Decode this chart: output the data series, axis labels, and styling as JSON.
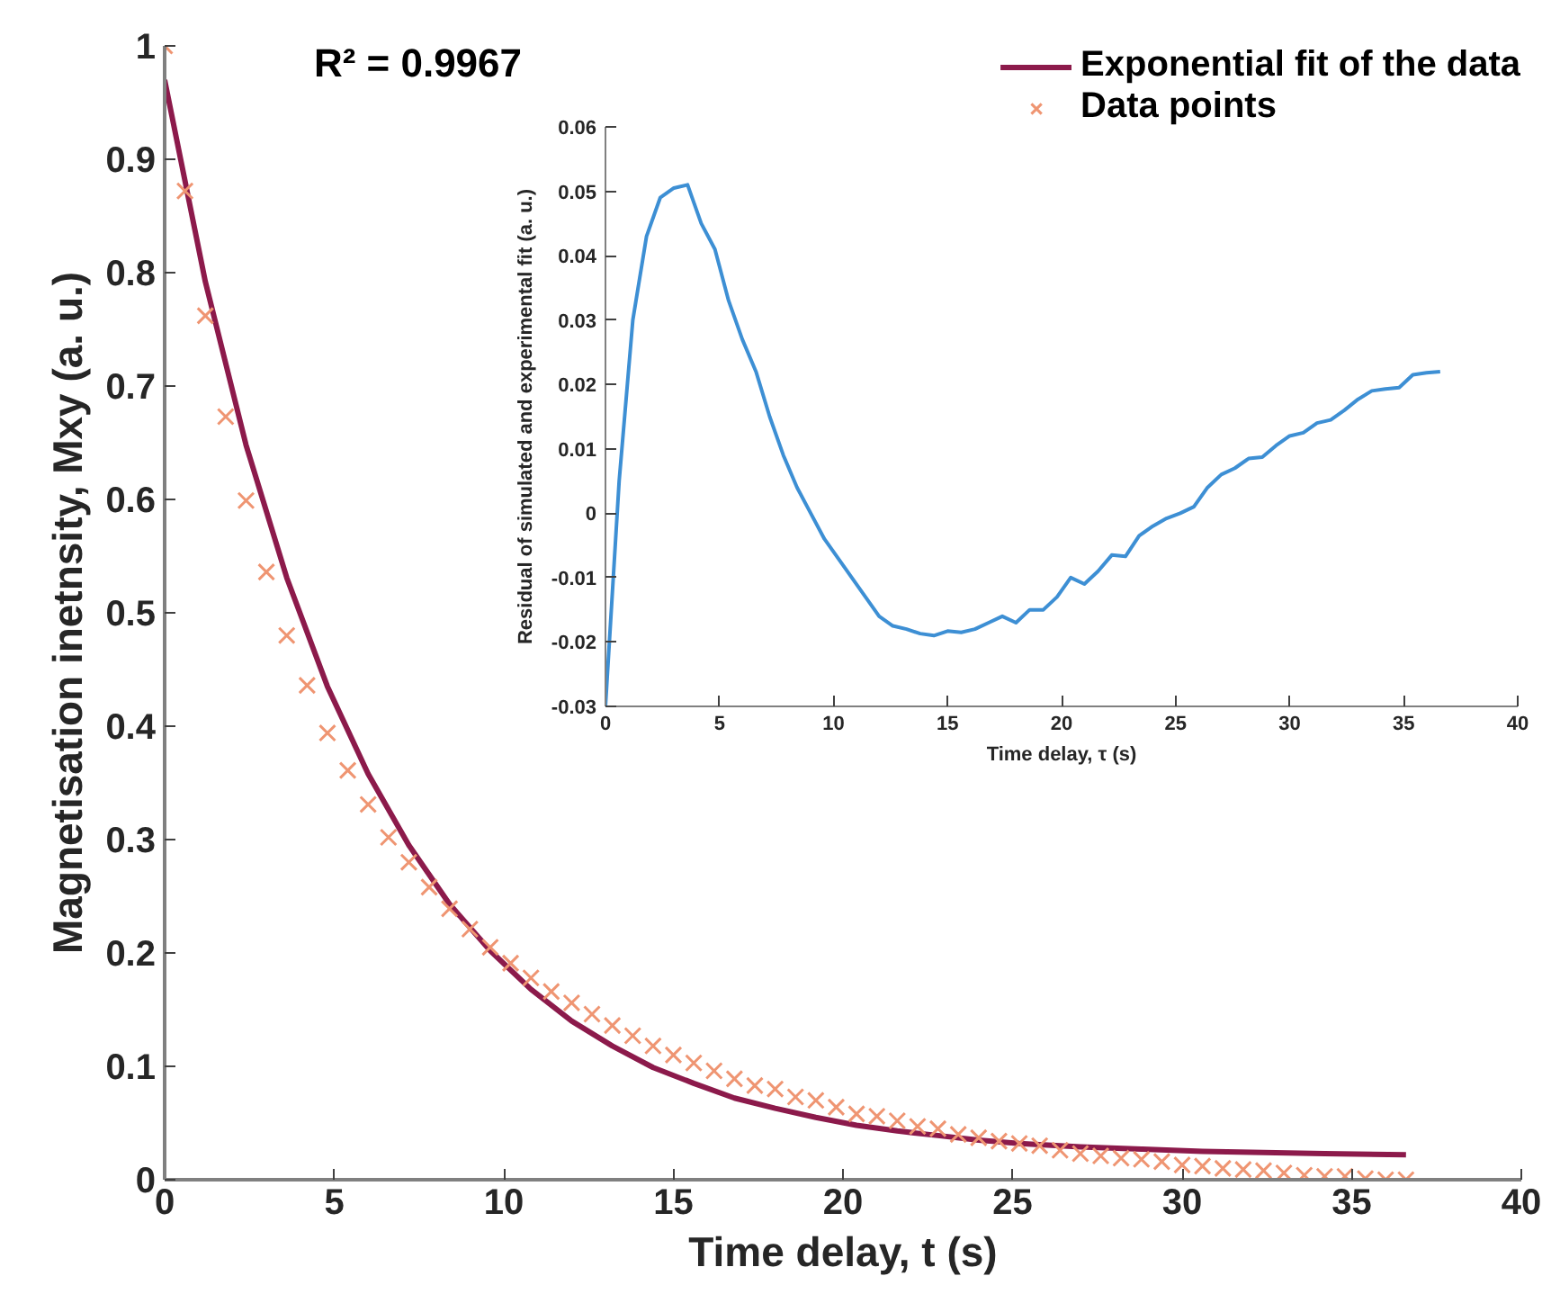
{
  "chart_data": [
    {
      "type": "scatter",
      "xlabel": "Time delay, t (s)",
      "ylabel": "Magnetisation inetnsity, Mxy (a. u.)",
      "annotations": [
        "R² = 0.9967"
      ],
      "xlim": [
        0,
        40
      ],
      "ylim": [
        0,
        1
      ],
      "xticks": [
        0,
        5,
        10,
        15,
        20,
        25,
        30,
        35,
        40
      ],
      "yticks": [
        0,
        {
          "value": 0.1,
          "label": "0.1"
        },
        {
          "value": 0.2,
          "label": "0.2"
        },
        {
          "value": 0.3,
          "label": "0.3"
        },
        {
          "value": 0.4,
          "label": "0.4"
        },
        {
          "value": 0.5,
          "label": "0.5"
        },
        {
          "value": 0.6,
          "label": "0.6"
        },
        {
          "value": 0.7,
          "label": "0.7"
        },
        {
          "value": 0.8,
          "label": "0.8"
        },
        {
          "value": 0.9,
          "label": "0.9"
        },
        1
      ],
      "grid": false,
      "legend": "top right",
      "series": [
        {
          "name": "Exponential fit of the data",
          "type": "line",
          "color": "#8c1a4b",
          "line_style": "solid",
          "x": [
            0,
            1.2,
            2.4,
            3.6,
            4.8,
            6.0,
            7.2,
            8.4,
            9.6,
            10.8,
            12.0,
            13.2,
            14.4,
            15.6,
            16.8,
            18.0,
            19.2,
            20.4,
            21.6,
            22.8,
            24.0,
            25.2,
            27.0,
            28.8,
            30.6,
            32.4,
            34.2,
            36.6
          ],
          "values": [
            0.97,
            0.792,
            0.648,
            0.531,
            0.435,
            0.358,
            0.295,
            0.243,
            0.202,
            0.168,
            0.14,
            0.118,
            0.099,
            0.085,
            0.072,
            0.063,
            0.055,
            0.048,
            0.043,
            0.039,
            0.035,
            0.032,
            0.029,
            0.027,
            0.025,
            0.024,
            0.023,
            0.022
          ]
        },
        {
          "name": "Data points",
          "type": "scatter",
          "marker": "cross",
          "color": "#ef9572",
          "x": [
            0,
            0.6,
            1.2,
            1.8,
            2.4,
            3.0,
            3.6,
            4.2,
            4.8,
            5.4,
            6.0,
            6.6,
            7.2,
            7.8,
            8.4,
            9.0,
            9.6,
            10.2,
            10.8,
            11.4,
            12.0,
            12.6,
            13.2,
            13.8,
            14.4,
            15.0,
            15.6,
            16.2,
            16.8,
            17.4,
            18.0,
            18.6,
            19.2,
            19.8,
            20.4,
            21.0,
            21.6,
            22.2,
            22.8,
            23.4,
            24.0,
            24.6,
            25.2,
            25.8,
            26.4,
            27.0,
            27.6,
            28.2,
            28.8,
            29.4,
            30.0,
            30.6,
            31.2,
            31.8,
            32.4,
            33.0,
            33.6,
            34.2,
            34.8,
            35.4,
            36.0,
            36.6
          ],
          "values": [
            1.0,
            0.872,
            0.762,
            0.673,
            0.599,
            0.536,
            0.48,
            0.436,
            0.394,
            0.361,
            0.331,
            0.302,
            0.28,
            0.258,
            0.239,
            0.221,
            0.205,
            0.191,
            0.178,
            0.166,
            0.156,
            0.146,
            0.136,
            0.127,
            0.118,
            0.11,
            0.103,
            0.096,
            0.089,
            0.083,
            0.08,
            0.073,
            0.07,
            0.064,
            0.058,
            0.056,
            0.052,
            0.047,
            0.045,
            0.04,
            0.037,
            0.034,
            0.032,
            0.03,
            0.026,
            0.023,
            0.021,
            0.019,
            0.018,
            0.016,
            0.013,
            0.012,
            0.01,
            0.009,
            0.008,
            0.006,
            0.004,
            0.003,
            0.003,
            0.001,
            0.0,
            0.0
          ]
        }
      ]
    },
    {
      "type": "line",
      "xlabel": "Time delay, τ (s)",
      "ylabel": "Residual of simulated and experimental fit (a. u.)",
      "xlim": [
        0,
        40
      ],
      "ylim": [
        -0.03,
        0.06
      ],
      "xticks": [
        0,
        5,
        10,
        15,
        20,
        25,
        30,
        35,
        40
      ],
      "yticks": [
        {
          "value": -0.03,
          "label": "-0.03"
        },
        {
          "value": -0.02,
          "label": "-0.02"
        },
        {
          "value": -0.01,
          "label": "-0.01"
        },
        0,
        {
          "value": 0.01,
          "label": "0.01"
        },
        {
          "value": 0.02,
          "label": "0.02"
        },
        {
          "value": 0.03,
          "label": "0.03"
        },
        {
          "value": 0.04,
          "label": "0.04"
        },
        {
          "value": 0.05,
          "label": "0.05"
        },
        {
          "value": 0.06,
          "label": "0.06"
        }
      ],
      "grid": false,
      "legend": false,
      "series": [
        {
          "color": "#3d8fd4",
          "x": [
            0,
            0.6,
            1.2,
            1.8,
            2.4,
            3.0,
            3.6,
            4.2,
            4.8,
            5.4,
            6.0,
            6.6,
            7.2,
            7.8,
            8.4,
            9.0,
            9.6,
            10.2,
            10.8,
            11.4,
            12.0,
            12.6,
            13.2,
            13.8,
            14.4,
            15.0,
            15.6,
            16.2,
            16.8,
            17.4,
            18.0,
            18.6,
            19.2,
            19.8,
            20.4,
            21.0,
            21.6,
            22.2,
            22.8,
            23.4,
            24.0,
            24.6,
            25.2,
            25.8,
            26.4,
            27.0,
            27.6,
            28.2,
            28.8,
            29.4,
            30.0,
            30.6,
            31.2,
            31.8,
            32.4,
            33.0,
            33.6,
            34.2,
            34.8,
            35.4,
            36.0,
            36.6
          ],
          "values": [
            -0.03,
            0.005,
            0.03,
            0.043,
            0.049,
            0.0505,
            0.051,
            0.045,
            0.041,
            0.033,
            0.027,
            0.022,
            0.015,
            0.009,
            0.004,
            0.0,
            -0.004,
            -0.007,
            -0.01,
            -0.013,
            -0.016,
            -0.0175,
            -0.018,
            -0.0187,
            -0.019,
            -0.0183,
            -0.0185,
            -0.018,
            -0.017,
            -0.016,
            -0.017,
            -0.015,
            -0.015,
            -0.013,
            -0.01,
            -0.011,
            -0.009,
            -0.0065,
            -0.0067,
            -0.0035,
            -0.002,
            -0.0008,
            0.0,
            0.001,
            0.004,
            0.006,
            0.007,
            0.0085,
            0.0087,
            0.0105,
            0.012,
            0.0125,
            0.014,
            0.0145,
            0.016,
            0.0177,
            0.019,
            0.0193,
            0.0195,
            0.0215,
            0.0218,
            0.022
          ]
        }
      ]
    }
  ]
}
